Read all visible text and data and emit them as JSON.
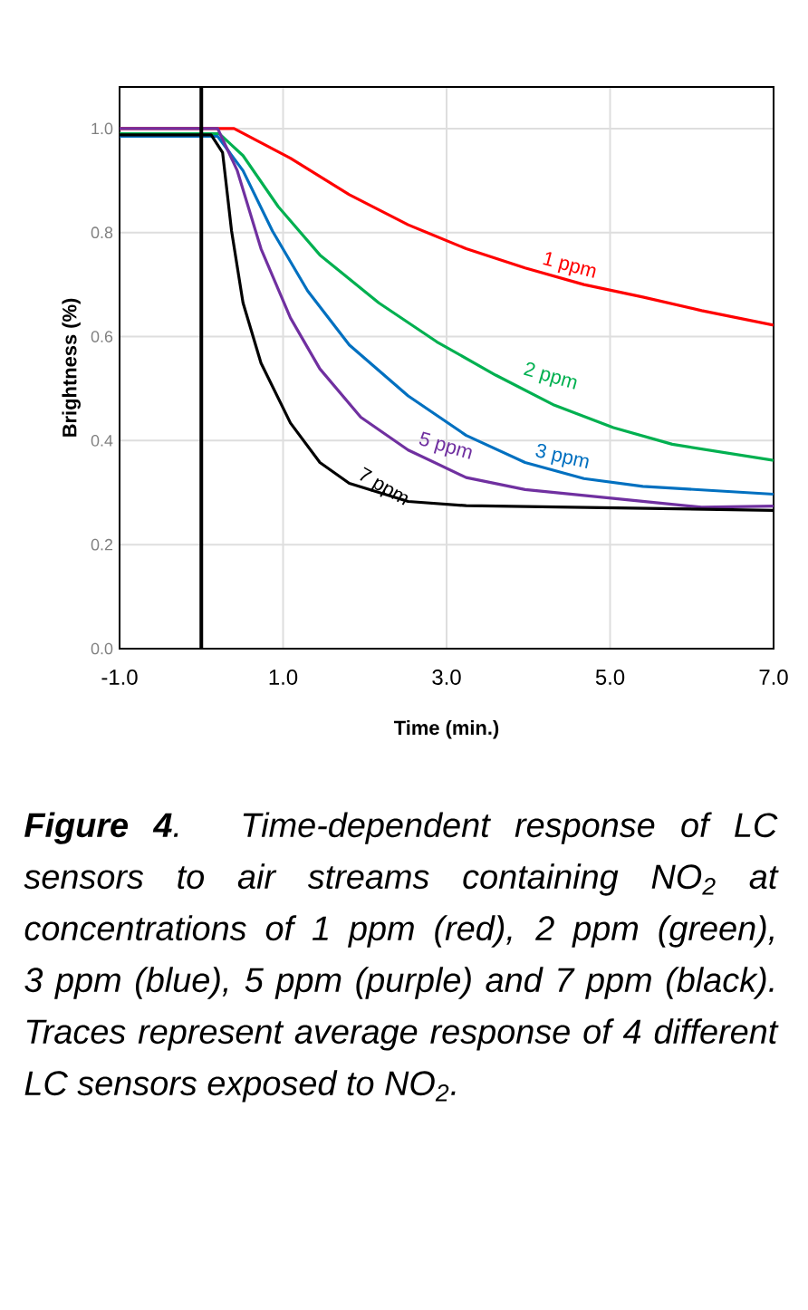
{
  "chart_data": {
    "type": "line",
    "xlabel": "Time (min.)",
    "ylabel": "Brightness (%)",
    "xlim": [
      -1,
      7
    ],
    "ylim": [
      0,
      1.08
    ],
    "xticks": [
      {
        "value": -1,
        "label": "-1.0"
      },
      {
        "value": 1,
        "label": "1.0"
      },
      {
        "value": 3,
        "label": "3.0"
      },
      {
        "value": 5,
        "label": "5.0"
      },
      {
        "value": 7,
        "label": "7.0"
      }
    ],
    "yticks": [
      {
        "value": 0,
        "label": "0.0"
      },
      {
        "value": 0.2,
        "label": "0.2"
      },
      {
        "value": 0.4,
        "label": "0.4"
      },
      {
        "value": 0.6,
        "label": "0.6"
      },
      {
        "value": 0.8,
        "label": "0.8"
      },
      {
        "value": 1.0,
        "label": "1.0"
      }
    ],
    "grid": true,
    "legend": false,
    "marker": "none",
    "line_style": "solid",
    "series": [
      {
        "name": "1 ppm",
        "color": "#ff0000",
        "x": [
          -1,
          0.2,
          0.4,
          1.09,
          1.81,
          2.53,
          3.24,
          3.96,
          4.68,
          5.4,
          6.12,
          7
        ],
        "values": [
          1.0,
          1.0,
          1.0,
          0.943,
          0.873,
          0.815,
          0.769,
          0.732,
          0.7,
          0.676,
          0.65,
          0.622
        ]
      },
      {
        "name": "2 ppm",
        "color": "#00b050",
        "x": [
          -1,
          0.22,
          0.51,
          0.94,
          1.45,
          2.17,
          2.88,
          3.6,
          4.32,
          5.04,
          5.76,
          7
        ],
        "values": [
          0.99,
          0.99,
          0.948,
          0.85,
          0.757,
          0.665,
          0.59,
          0.526,
          0.468,
          0.425,
          0.393,
          0.362
        ]
      },
      {
        "name": "3 ppm",
        "color": "#0070c0",
        "x": [
          -1,
          0.2,
          0.51,
          0.87,
          1.3,
          1.81,
          2.53,
          3.24,
          3.96,
          4.68,
          5.4,
          7
        ],
        "values": [
          0.985,
          0.985,
          0.919,
          0.803,
          0.688,
          0.584,
          0.486,
          0.41,
          0.358,
          0.327,
          0.312,
          0.297
        ]
      },
      {
        "name": "5 ppm",
        "color": "#7030a0",
        "x": [
          -1,
          0.2,
          0.44,
          0.73,
          1.09,
          1.45,
          1.95,
          2.53,
          3.24,
          3.96,
          5.04,
          6.12,
          7
        ],
        "values": [
          1.0,
          1.0,
          0.919,
          0.769,
          0.636,
          0.538,
          0.445,
          0.382,
          0.329,
          0.306,
          0.289,
          0.272,
          0.274
        ]
      },
      {
        "name": "7 ppm",
        "color": "#000000",
        "x": [
          -1,
          0.12,
          0.26,
          0.37,
          0.51,
          0.73,
          1.09,
          1.45,
          1.81,
          2.53,
          3.24,
          7
        ],
        "values": [
          0.988,
          0.988,
          0.954,
          0.803,
          0.665,
          0.549,
          0.434,
          0.358,
          0.318,
          0.283,
          0.275,
          0.266
        ]
      }
    ],
    "ref_lines": [
      {
        "axis": "x",
        "value": 0,
        "color": "#000000"
      }
    ],
    "annotations": [
      "**Figure 4**. Time-dependent response of LC sensors to air streams containing NO$_{2}$ at concentrations of 1 ppm (red), 2 ppm (green), 3 ppm (blue), 5 ppm (purple) and 7 ppm (black). Traces represent average response of 4 different LC sensors exposed to NO$_{2}$."
    ]
  }
}
